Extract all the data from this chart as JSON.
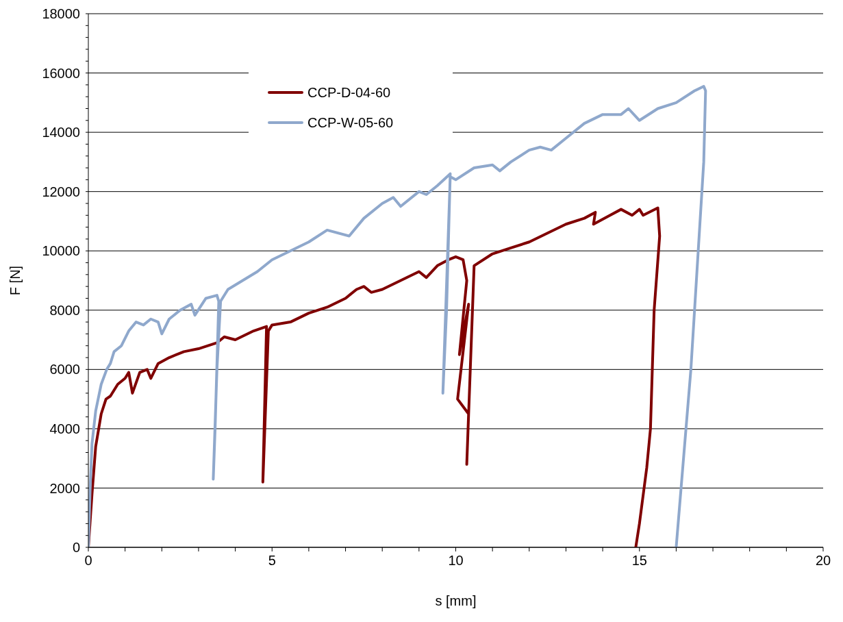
{
  "chart_data": {
    "type": "line",
    "xlabel": "s [mm]",
    "ylabel": "F [N]",
    "xlim": [
      0,
      20
    ],
    "ylim": [
      0,
      18000
    ],
    "xticks": [
      0,
      {
        "value": 1,
        "label": null
      },
      {
        "value": 2,
        "label": null
      },
      {
        "value": 3,
        "label": null
      },
      {
        "value": 4,
        "label": null
      },
      5,
      {
        "value": 6,
        "label": null
      },
      {
        "value": 7,
        "label": null
      },
      {
        "value": 8,
        "label": null
      },
      {
        "value": 9,
        "label": null
      },
      10,
      {
        "value": 11,
        "label": null
      },
      {
        "value": 12,
        "label": null
      },
      {
        "value": 13,
        "label": null
      },
      {
        "value": 14,
        "label": null
      },
      15,
      {
        "value": 16,
        "label": null
      },
      {
        "value": 17,
        "label": null
      },
      {
        "value": 18,
        "label": null
      },
      {
        "value": 19,
        "label": null
      },
      20
    ],
    "yticks": [
      0,
      {
        "value": 400,
        "label": null
      },
      {
        "value": 800,
        "label": null
      },
      {
        "value": 1200,
        "label": null
      },
      {
        "value": 1600,
        "label": null
      },
      2000,
      {
        "value": 2400,
        "label": null
      },
      {
        "value": 2800,
        "label": null
      },
      {
        "value": 3200,
        "label": null
      },
      {
        "value": 3600,
        "label": null
      },
      4000,
      {
        "value": 4400,
        "label": null
      },
      {
        "value": 4800,
        "label": null
      },
      {
        "value": 5200,
        "label": null
      },
      {
        "value": 5600,
        "label": null
      },
      6000,
      {
        "value": 6400,
        "label": null
      },
      {
        "value": 6800,
        "label": null
      },
      {
        "value": 7200,
        "label": null
      },
      {
        "value": 7600,
        "label": null
      },
      8000,
      {
        "value": 8400,
        "label": null
      },
      {
        "value": 8800,
        "label": null
      },
      {
        "value": 9200,
        "label": null
      },
      {
        "value": 9600,
        "label": null
      },
      10000,
      {
        "value": 10400,
        "label": null
      },
      {
        "value": 10800,
        "label": null
      },
      {
        "value": 11200,
        "label": null
      },
      {
        "value": 11600,
        "label": null
      },
      12000,
      {
        "value": 12400,
        "label": null
      },
      {
        "value": 12800,
        "label": null
      },
      {
        "value": 13200,
        "label": null
      },
      {
        "value": 13600,
        "label": null
      },
      14000,
      {
        "value": 14400,
        "label": null
      },
      {
        "value": 14800,
        "label": null
      },
      {
        "value": 15200,
        "label": null
      },
      {
        "value": 15600,
        "label": null
      },
      16000,
      {
        "value": 16400,
        "label": null
      },
      {
        "value": 16800,
        "label": null
      },
      {
        "value": 17200,
        "label": null
      },
      {
        "value": 17600,
        "label": null
      },
      18000
    ],
    "grid": "y",
    "legend": "top left",
    "marker": "none",
    "line_style": "solid",
    "series": [
      {
        "name": "CCP-D-04-60",
        "color": "#800000",
        "x": [
          0,
          0.1,
          0.2,
          0.35,
          0.48,
          0.6,
          0.8,
          1.0,
          1.1,
          1.2,
          1.4,
          1.6,
          1.7,
          1.9,
          2.2,
          2.6,
          3.0,
          3.5,
          3.7,
          4.0,
          4.5,
          4.85,
          4.75,
          4.9,
          5.0,
          5.5,
          6.0,
          6.5,
          7.0,
          7.3,
          7.5,
          7.7,
          8.0,
          8.5,
          9.0,
          9.2,
          9.5,
          9.8,
          10.0,
          10.2,
          10.3,
          10.1,
          10.35,
          10.05,
          10.35,
          10.3,
          10.5,
          11.0,
          11.5,
          12.0,
          12.5,
          13.0,
          13.5,
          13.8,
          13.75,
          14.2,
          14.5,
          14.8,
          15.0,
          15.1,
          15.5,
          15.55,
          15.4,
          15.3,
          15.2,
          15.0,
          14.9
        ],
        "values": [
          0,
          1800,
          3400,
          4500,
          5000,
          5100,
          5500,
          5700,
          5900,
          5200,
          5900,
          6000,
          5700,
          6200,
          6400,
          6600,
          6700,
          6900,
          7100,
          7000,
          7300,
          7450,
          2200,
          7300,
          7500,
          7600,
          7900,
          8100,
          8400,
          8700,
          8800,
          8600,
          8700,
          9000,
          9300,
          9100,
          9500,
          9700,
          9800,
          9700,
          9000,
          6500,
          8200,
          5000,
          4500,
          2800,
          9500,
          9900,
          10100,
          10300,
          10600,
          10900,
          11100,
          11300,
          10900,
          11200,
          11400,
          11200,
          11400,
          11200,
          11450,
          10500,
          8000,
          4000,
          2700,
          800,
          0
        ]
      },
      {
        "name": "CCP-W-05-60",
        "color": "#8fa8cc",
        "x": [
          0,
          0.05,
          0.1,
          0.2,
          0.35,
          0.5,
          0.6,
          0.7,
          0.9,
          1.1,
          1.3,
          1.5,
          1.7,
          1.9,
          2.0,
          2.2,
          2.5,
          2.8,
          2.9,
          3.2,
          3.5,
          3.55,
          3.45,
          3.4,
          3.5,
          3.6,
          3.8,
          4.2,
          4.6,
          5.0,
          5.5,
          6.0,
          6.5,
          7.1,
          7.5,
          8.0,
          8.3,
          8.5,
          9.0,
          9.2,
          9.5,
          9.85,
          9.75,
          9.65,
          9.85,
          10.0,
          10.5,
          11.0,
          11.2,
          11.5,
          12.0,
          12.3,
          12.6,
          13.0,
          13.5,
          14.0,
          14.5,
          14.7,
          15.0,
          15.5,
          16.0,
          16.5,
          16.75,
          16.8,
          16.75,
          16.6,
          16.4,
          16.2,
          16.0
        ],
        "values": [
          0,
          2000,
          3500,
          4600,
          5500,
          6000,
          6200,
          6600,
          6800,
          7300,
          7600,
          7500,
          7700,
          7600,
          7200,
          7700,
          8000,
          8200,
          7830,
          8400,
          8500,
          8300,
          4000,
          2300,
          6000,
          8300,
          8700,
          9000,
          9300,
          9700,
          10000,
          10300,
          10700,
          10500,
          11100,
          11600,
          11800,
          11500,
          12000,
          11900,
          12200,
          12600,
          8000,
          5200,
          12500,
          12400,
          12800,
          12900,
          12700,
          13000,
          13400,
          13500,
          13400,
          13800,
          14300,
          14600,
          14600,
          14800,
          14400,
          14800,
          15000,
          15400,
          15550,
          15400,
          13000,
          10000,
          6000,
          3000,
          0
        ]
      }
    ]
  }
}
